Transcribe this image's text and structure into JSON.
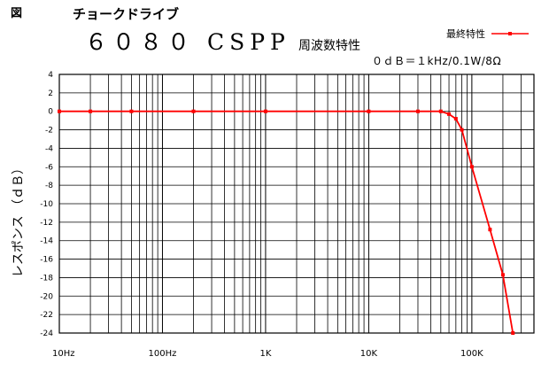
{
  "figure_label": "図",
  "subtitle": "チョークドライブ",
  "title_main": "６０８０ CSPP",
  "title_suffix": "周波数特性",
  "reference_note": "０ｄＢ＝１kHz/0.1W/8Ω",
  "colors": {
    "series": "#ff0000",
    "grid": "#000000",
    "axis": "#000000"
  },
  "chart_data": {
    "type": "line",
    "title": "６０８０ CSPP 周波数特性",
    "xlabel": "",
    "ylabel": "レスポンス （ｄＢ）",
    "xscale": "log",
    "xlim": [
      10,
      400000
    ],
    "ylim": [
      -24,
      4
    ],
    "grid": true,
    "legend_position": "top-right",
    "x_tick_values": [
      10,
      100,
      1000,
      10000,
      100000
    ],
    "x_tick_labels": [
      "10Hz",
      "100Hz",
      "1K",
      "10K",
      "100K"
    ],
    "y_ticks": [
      4,
      2,
      0,
      -2,
      -4,
      -6,
      -8,
      -10,
      -12,
      -14,
      -16,
      -18,
      -20,
      -22,
      -24
    ],
    "series": [
      {
        "name": "最終特性",
        "color": "#ff0000",
        "x": [
          10,
          20,
          50,
          200,
          1000,
          10000,
          30000,
          50000,
          60000,
          70000,
          80000,
          100000,
          150000,
          200000,
          250000
        ],
        "y": [
          0,
          0,
          0,
          0,
          0,
          0,
          0,
          0,
          -0.3,
          -0.8,
          -2,
          -6,
          -12.8,
          -17.7,
          -24
        ]
      }
    ]
  }
}
